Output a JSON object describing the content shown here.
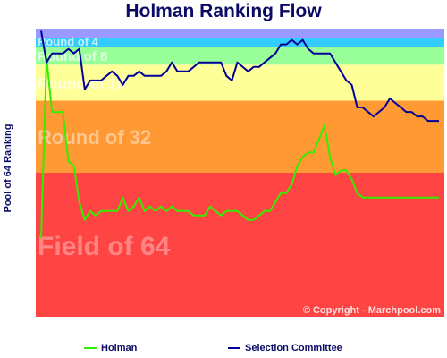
{
  "chart_data": {
    "type": "line",
    "title": "Holman Ranking Flow",
    "ylabel": "Pool of 64 Ranking",
    "copyright": "© Copyright - Marchpool.com",
    "ylim": [
      64,
      1
    ],
    "bands": [
      {
        "label": "Field of 64",
        "from": 33,
        "to": 64,
        "color": "#ff4444"
      },
      {
        "label": "Round of 32",
        "from": 17,
        "to": 32,
        "color": "#ff9933"
      },
      {
        "label": "Round of 16",
        "from": 9,
        "to": 16,
        "color": "#ffff99"
      },
      {
        "label": "Round of 8",
        "from": 5,
        "to": 8,
        "color": "#99ff99"
      },
      {
        "label": "Round of 4",
        "from": 3,
        "to": 4,
        "color": "#33ccff"
      },
      {
        "label": "",
        "from": 1,
        "to": 2,
        "color": "#9999ff"
      }
    ],
    "series": [
      {
        "name": "Holman",
        "color": "#33ee00",
        "values": [
          47,
          7,
          19,
          19,
          19,
          30,
          31,
          39,
          43,
          41,
          42,
          41,
          41,
          41,
          41,
          38,
          41,
          40,
          38,
          41,
          40,
          41,
          40,
          41,
          40,
          41,
          41,
          41,
          42,
          42,
          42,
          40,
          41,
          42,
          41,
          41,
          41,
          42,
          43,
          43,
          42,
          41,
          41,
          39,
          37,
          37,
          35,
          31,
          29,
          28,
          28,
          25,
          22,
          29,
          33,
          32,
          32,
          34,
          37,
          38,
          38,
          38,
          38,
          38,
          38,
          38,
          38,
          38,
          38,
          38,
          38,
          38,
          38,
          38
        ]
      },
      {
        "name": "Selection Committee",
        "color": "#000099",
        "values": [
          1,
          8,
          6,
          6,
          6,
          5,
          6,
          5,
          14,
          12,
          12,
          12,
          11,
          10,
          11,
          13,
          11,
          11,
          10,
          11,
          11,
          11,
          11,
          10,
          8,
          10,
          10,
          10,
          9,
          8,
          8,
          8,
          8,
          8,
          11,
          12,
          8,
          9,
          10,
          9,
          9,
          8,
          7,
          6,
          4,
          4,
          3,
          4,
          3,
          5,
          6,
          6,
          6,
          6,
          8,
          10,
          12,
          13,
          18,
          18,
          19,
          20,
          19,
          18,
          16,
          17,
          18,
          19,
          19,
          20,
          20,
          21,
          21,
          21
        ]
      }
    ]
  }
}
